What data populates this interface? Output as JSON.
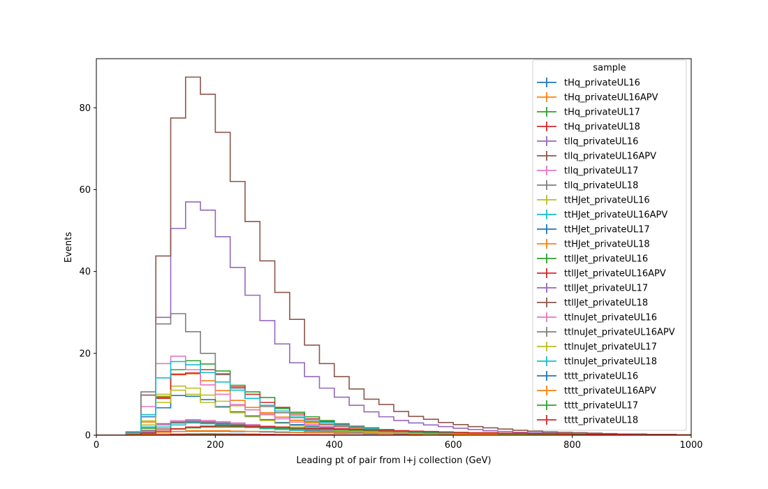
{
  "chart_data": {
    "type": "line",
    "title": "",
    "xlabel": "Leading pt of pair from l+j collection (GeV)",
    "ylabel": "Events",
    "xlim": [
      0,
      1000
    ],
    "ylim": [
      0,
      92
    ],
    "xticks": [
      0,
      200,
      400,
      600,
      800,
      1000
    ],
    "yticks": [
      0,
      20,
      40,
      60,
      80
    ],
    "grid": false,
    "legend": {
      "title": "sample",
      "placement": "top-right"
    },
    "bin_width": 25,
    "bin_start": 0,
    "series": [
      {
        "name": "tHq_privateUL16",
        "color": "#1f77b4",
        "values": [
          0,
          0,
          0,
          0.02,
          0.05,
          0.08,
          0.1,
          0.12,
          0.12,
          0.1,
          0.09,
          0.08,
          0.07,
          0.06,
          0.05,
          0.04,
          0.03,
          0.03,
          0.02,
          0.02,
          0.02,
          0.01,
          0.01,
          0.01,
          0,
          0,
          0,
          0,
          0,
          0,
          0,
          0,
          0,
          0,
          0,
          0,
          0,
          0,
          0,
          0
        ]
      },
      {
        "name": "tHq_privateUL16APV",
        "color": "#ff7f0e",
        "values": [
          0,
          0,
          0,
          0.02,
          0.05,
          0.08,
          0.1,
          0.12,
          0.12,
          0.1,
          0.09,
          0.08,
          0.07,
          0.06,
          0.05,
          0.04,
          0.03,
          0.03,
          0.02,
          0.02,
          0.02,
          0.01,
          0.01,
          0.01,
          0,
          0,
          0,
          0,
          0,
          0,
          0,
          0,
          0,
          0,
          0,
          0,
          0,
          0,
          0,
          0
        ]
      },
      {
        "name": "tHq_privateUL17",
        "color": "#2ca02c",
        "values": [
          0,
          0,
          0,
          0.03,
          0.08,
          0.15,
          0.2,
          0.22,
          0.2,
          0.18,
          0.16,
          0.14,
          0.12,
          0.1,
          0.08,
          0.07,
          0.06,
          0.05,
          0.04,
          0.03,
          0.03,
          0.02,
          0.02,
          0.01,
          0.01,
          0,
          0,
          0,
          0,
          0,
          0,
          0,
          0,
          0,
          0,
          0,
          0,
          0,
          0,
          0
        ]
      },
      {
        "name": "tHq_privateUL18",
        "color": "#d62728",
        "values": [
          0,
          0,
          0,
          0.05,
          0.15,
          0.25,
          0.3,
          0.32,
          0.3,
          0.27,
          0.24,
          0.2,
          0.17,
          0.14,
          0.12,
          0.1,
          0.08,
          0.07,
          0.06,
          0.05,
          0.04,
          0.03,
          0.03,
          0.02,
          0.02,
          0.01,
          0.01,
          0,
          0,
          0,
          0,
          0,
          0,
          0,
          0,
          0,
          0,
          0,
          0,
          0
        ]
      },
      {
        "name": "tllq_privateUL16",
        "color": "#9467bd",
        "values": [
          0,
          0,
          0,
          0.8,
          2,
          3.5,
          3.7,
          3.3,
          3,
          2.7,
          2.3,
          2,
          1.7,
          1.4,
          1.2,
          1,
          0.8,
          0.7,
          0.6,
          0.5,
          0.4,
          0.3,
          0.3,
          0.2,
          0.2,
          0.1,
          0.1,
          0.1,
          0.1,
          0.05,
          0.05,
          0,
          0,
          0,
          0,
          0,
          0,
          0,
          0,
          0
        ]
      },
      {
        "name": "tllq_privateUL16APV",
        "color": "#8c564b",
        "values": [
          0,
          0,
          0,
          0.5,
          1.5,
          3,
          3.2,
          3,
          2.7,
          2.4,
          2.1,
          1.8,
          1.5,
          1.2,
          1,
          0.9,
          0.7,
          0.6,
          0.5,
          0.4,
          0.3,
          0.3,
          0.2,
          0.2,
          0.1,
          0.1,
          0.1,
          0.05,
          0.05,
          0,
          0,
          0,
          0,
          0,
          0,
          0,
          0,
          0,
          0,
          0
        ]
      },
      {
        "name": "tllq_privateUL17",
        "color": "#e377c2",
        "values": [
          0,
          0,
          0,
          1,
          2.5,
          3.5,
          3.8,
          3.6,
          3.3,
          3,
          2.6,
          2.2,
          1.9,
          1.6,
          1.3,
          1.1,
          0.9,
          0.8,
          0.6,
          0.5,
          0.4,
          0.4,
          0.3,
          0.2,
          0.2,
          0.1,
          0.1,
          0.1,
          0.05,
          0.05,
          0,
          0,
          0,
          0,
          0,
          0,
          0,
          0,
          0,
          0
        ]
      },
      {
        "name": "tllq_privateUL18",
        "color": "#7f7f7f",
        "values": [
          0,
          0,
          0,
          1.2,
          2.8,
          3.2,
          3.4,
          3.2,
          2.9,
          2.6,
          2.3,
          2,
          1.7,
          1.4,
          1.2,
          1,
          0.8,
          0.7,
          0.6,
          0.5,
          0.4,
          0.3,
          0.3,
          0.2,
          0.2,
          0.1,
          0.1,
          0.1,
          0.05,
          0.05,
          0,
          0,
          0,
          0,
          0,
          0,
          0,
          0,
          0,
          0
        ]
      },
      {
        "name": "ttHJet_privateUL16",
        "color": "#bcbd22",
        "values": [
          0,
          0,
          0.3,
          3.5,
          10,
          12,
          11.5,
          9.8,
          8.3,
          7.2,
          6.2,
          5.2,
          4.4,
          3.7,
          3.1,
          2.6,
          2.2,
          1.8,
          1.5,
          1.2,
          1,
          0.8,
          0.7,
          0.6,
          0.5,
          0.4,
          0.3,
          0.3,
          0.2,
          0.2,
          0.1,
          0.1,
          0.1,
          0.05,
          0.05,
          0,
          0,
          0,
          0,
          0
        ]
      },
      {
        "name": "ttHJet_privateUL16APV",
        "color": "#17becf",
        "values": [
          0,
          0,
          0.2,
          2,
          2,
          2.5,
          3,
          2.8,
          2.5,
          2.2,
          1.9,
          1.6,
          1.4,
          1.2,
          1,
          0.9,
          0.7,
          0.6,
          0.5,
          0.4,
          0.3,
          0.3,
          0.2,
          0.2,
          0.1,
          0.1,
          0.1,
          0.05,
          0,
          0,
          0,
          0,
          0,
          0,
          0,
          0,
          0,
          0,
          0,
          0
        ]
      },
      {
        "name": "ttHJet_privateUL17",
        "color": "#1f77b4",
        "values": [
          0,
          0,
          0.5,
          4.5,
          6.7,
          9.7,
          9.5,
          8.7,
          7,
          5.7,
          4.7,
          3.8,
          3.1,
          2.6,
          2.2,
          1.8,
          1.5,
          1.2,
          1,
          0.8,
          0.7,
          0.6,
          0.5,
          0.4,
          0.3,
          0.3,
          0.2,
          0.2,
          0.1,
          0.1,
          0.1,
          0.05,
          0,
          0,
          0,
          0,
          0,
          0,
          0,
          0
        ]
      },
      {
        "name": "ttHJet_privateUL18",
        "color": "#ff7f0e",
        "values": [
          0,
          0,
          0.4,
          3.2,
          9.5,
          15,
          15,
          13.3,
          10.9,
          8.5,
          6.8,
          5.5,
          4.4,
          3.6,
          3,
          2.5,
          2.1,
          1.7,
          1.4,
          1.2,
          1,
          0.8,
          0.7,
          0.6,
          0.5,
          0.4,
          0.3,
          0.3,
          0.2,
          0.2,
          0.1,
          0.1,
          0.1,
          0.05,
          0,
          0,
          0,
          0,
          0,
          0
        ]
      },
      {
        "name": "ttllJet_privateUL16",
        "color": "#2ca02c",
        "values": [
          0,
          0,
          0.4,
          1.7,
          9.3,
          16,
          18.2,
          17.4,
          15.7,
          12.2,
          10.6,
          9.2,
          6.5,
          5.6,
          4.5,
          3.6,
          2.8,
          2.2,
          1.8,
          1.4,
          1.1,
          0.9,
          0.7,
          0.6,
          0.5,
          0.4,
          0.3,
          0.3,
          0.2,
          0.2,
          0.1,
          0.1,
          0.1,
          0.05,
          0,
          0,
          0,
          0,
          0,
          0
        ]
      },
      {
        "name": "ttllJet_privateUL16APV",
        "color": "#d62728",
        "values": [
          0,
          0,
          0.3,
          2.5,
          9,
          14.8,
          15.2,
          16,
          15,
          11.8,
          10,
          8,
          6.8,
          5.2,
          4,
          3.3,
          2.6,
          2.1,
          1.7,
          1.3,
          1,
          0.8,
          0.7,
          0.6,
          0.5,
          0.4,
          0.3,
          0.3,
          0.2,
          0.2,
          0.1,
          0.1,
          0.1,
          0.05,
          0,
          0,
          0,
          0,
          0,
          0
        ]
      },
      {
        "name": "ttllJet_privateUL17",
        "color": "#9467bd",
        "values": [
          0,
          0,
          0.6,
          5,
          28.8,
          50.5,
          57,
          55,
          48.5,
          41,
          34.2,
          28,
          22.3,
          17.7,
          14.3,
          11.5,
          9.3,
          7.3,
          5.7,
          4.5,
          3.6,
          3,
          2.5,
          2.1,
          1.7,
          1.4,
          1.1,
          0.9,
          0.7,
          0.6,
          0.5,
          0.4,
          0.3,
          0.3,
          0.2,
          0.2,
          0.1,
          0.1,
          0.1,
          0.05
        ]
      },
      {
        "name": "ttllJet_privateUL18",
        "color": "#8c564b",
        "values": [
          0,
          0,
          0.8,
          9.8,
          43.8,
          77.5,
          87.5,
          83.3,
          74,
          62,
          52.2,
          42.6,
          34.9,
          28.3,
          22,
          17.5,
          14.3,
          11.3,
          8.8,
          7.5,
          5.8,
          4.6,
          3.9,
          3.1,
          2.6,
          2.1,
          1.8,
          1.5,
          1.2,
          1,
          0.8,
          0.7,
          0.6,
          0.5,
          0.4,
          0.3,
          0.3,
          0.2,
          0.2,
          0.1
        ]
      },
      {
        "name": "ttlnuJet_privateUL16",
        "color": "#e377c2",
        "values": [
          0,
          0,
          0.5,
          7,
          17.5,
          19.3,
          16,
          12.3,
          10,
          7.5,
          6.2,
          5,
          4,
          3.2,
          2.6,
          2.1,
          1.7,
          1.4,
          1.1,
          0.9,
          0.7,
          0.6,
          0.5,
          0.4,
          0.3,
          0.3,
          0.2,
          0.2,
          0.1,
          0.1,
          0.1,
          0.05,
          0,
          0,
          0,
          0,
          0,
          0,
          0,
          0
        ]
      },
      {
        "name": "ttlnuJet_privateUL16APV",
        "color": "#7f7f7f",
        "values": [
          0,
          0,
          0.6,
          10.6,
          27.2,
          29.7,
          25.3,
          20,
          14.8,
          11.5,
          9,
          7,
          5.5,
          4.3,
          3.4,
          2.7,
          2.2,
          1.8,
          1.4,
          1.1,
          0.9,
          0.7,
          0.6,
          0.5,
          0.4,
          0.3,
          0.3,
          0.2,
          0.2,
          0.1,
          0.1,
          0.1,
          0.05,
          0,
          0,
          0,
          0,
          0,
          0,
          0
        ]
      },
      {
        "name": "ttlnuJet_privateUL17",
        "color": "#bcbd22",
        "values": [
          0,
          0,
          0.4,
          2.5,
          8,
          11,
          10,
          8,
          6.8,
          5.5,
          4.5,
          3.6,
          2.9,
          2.3,
          1.9,
          1.5,
          1.2,
          1,
          0.8,
          0.6,
          0.5,
          0.4,
          0.3,
          0.3,
          0.2,
          0.2,
          0.1,
          0.1,
          0.1,
          0.05,
          0,
          0,
          0,
          0,
          0,
          0,
          0,
          0,
          0,
          0
        ]
      },
      {
        "name": "ttlnuJet_privateUL18",
        "color": "#17becf",
        "values": [
          0,
          0,
          0.5,
          5,
          14,
          18,
          17.2,
          15.3,
          13,
          11,
          9,
          7.3,
          5.9,
          4.7,
          3.8,
          3.1,
          2.5,
          2,
          1.6,
          1.3,
          1,
          0.8,
          0.7,
          0.6,
          0.5,
          0.4,
          0.3,
          0.3,
          0.2,
          0.2,
          0.1,
          0.1,
          0.1,
          0.05,
          0,
          0,
          0,
          0,
          0,
          0
        ]
      },
      {
        "name": "tttt_privateUL16",
        "color": "#1f77b4",
        "values": [
          0,
          0,
          0.05,
          0.3,
          0.6,
          0.9,
          1,
          1,
          1,
          0.9,
          0.9,
          0.8,
          0.7,
          0.7,
          0.6,
          0.6,
          0.5,
          0.5,
          0.4,
          0.4,
          0.3,
          0.3,
          0.3,
          0.2,
          0.2,
          0.2,
          0.2,
          0.1,
          0.1,
          0.1,
          0.1,
          0.1,
          0.05,
          0.05,
          0.05,
          0.05,
          0,
          0,
          0,
          0
        ]
      },
      {
        "name": "tttt_privateUL16APV",
        "color": "#ff7f0e",
        "values": [
          0,
          0,
          0.05,
          0.3,
          0.6,
          0.9,
          1.1,
          1.1,
          1.1,
          1,
          0.9,
          0.9,
          0.8,
          0.7,
          0.7,
          0.6,
          0.6,
          0.5,
          0.5,
          0.4,
          0.4,
          0.3,
          0.3,
          0.3,
          0.2,
          0.2,
          0.2,
          0.1,
          0.1,
          0.1,
          0.1,
          0.1,
          0.05,
          0.05,
          0.05,
          0,
          0,
          0,
          0,
          0
        ]
      },
      {
        "name": "tttt_privateUL17",
        "color": "#2ca02c",
        "values": [
          0,
          0,
          0.1,
          0.5,
          1,
          1.5,
          1.8,
          2,
          2,
          2,
          1.9,
          1.8,
          1.7,
          1.6,
          1.5,
          1.4,
          1.3,
          1.2,
          1.1,
          1,
          0.9,
          0.8,
          0.7,
          0.7,
          0.6,
          0.5,
          0.5,
          0.4,
          0.4,
          0.3,
          0.3,
          0.3,
          0.2,
          0.2,
          0.2,
          0.1,
          0.1,
          0.1,
          0.1,
          0.05
        ]
      },
      {
        "name": "tttt_privateUL18",
        "color": "#d62728",
        "values": [
          0,
          0,
          0.1,
          0.5,
          1,
          1.6,
          2,
          2.2,
          2.3,
          2.3,
          2.2,
          2.1,
          2,
          1.8,
          1.7,
          1.6,
          1.5,
          1.4,
          1.3,
          1.2,
          1.1,
          1,
          0.9,
          0.8,
          0.7,
          0.6,
          0.6,
          0.5,
          0.5,
          0.4,
          0.4,
          0.3,
          0.3,
          0.2,
          0.2,
          0.2,
          0.1,
          0.1,
          0.1,
          0.05
        ]
      }
    ]
  }
}
